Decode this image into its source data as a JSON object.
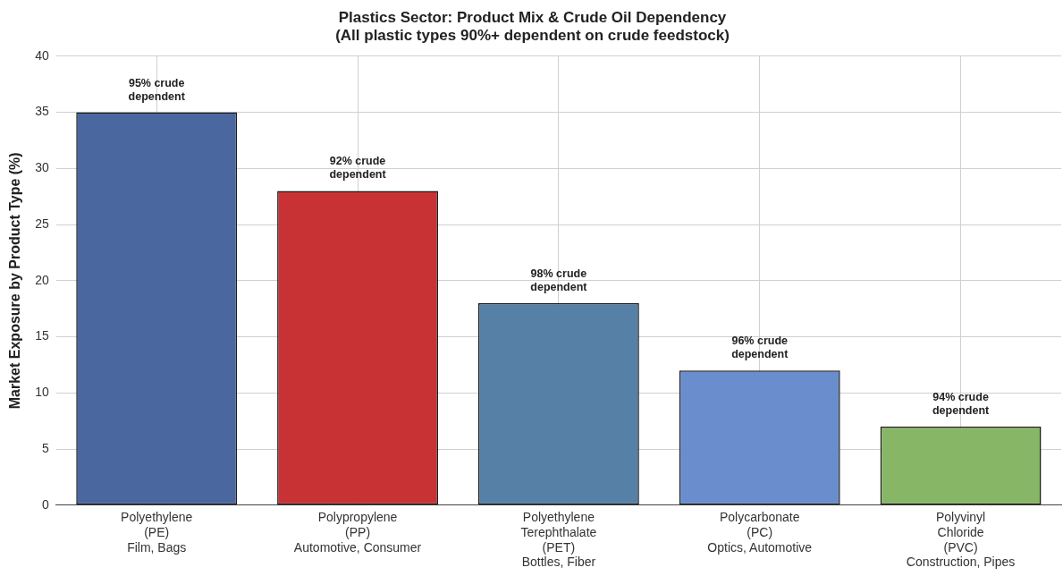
{
  "chart_data": {
    "type": "bar",
    "title": "Plastics Sector: Product Mix & Crude Oil Dependency",
    "subtitle": "(All plastic types 90%+ dependent on crude feedstock)",
    "ylabel": "Market Exposure by Product Type (%)",
    "categories": [
      "Polyethylene\n(PE)\nFilm, Bags",
      "Polypropylene\n(PP)\nAutomotive, Consumer",
      "Polyethylene\nTerephthalate\n(PET)\nBottles, Fiber",
      "Polycarbonate\n(PC)\nOptics, Automotive",
      "Polyvinyl\nChloride\n(PVC)\nConstruction, Pipes"
    ],
    "values": [
      35,
      28,
      18,
      12,
      7
    ],
    "colors": [
      "#4a67a0",
      "#c93234",
      "#5680a6",
      "#6a8dcd",
      "#87b766"
    ],
    "ylim": [
      0,
      40
    ],
    "yticks": [
      0,
      5,
      10,
      15,
      20,
      25,
      30,
      35,
      40
    ],
    "grid": true,
    "legend": false,
    "annotations": [
      {
        "text": "95% crude\ndependent",
        "x": "Polyethylene\n(PE)\nFilm, Bags",
        "y": 35
      },
      {
        "text": "92% crude\ndependent",
        "x": "Polypropylene\n(PP)\nAutomotive, Consumer",
        "y": 28
      },
      {
        "text": "98% crude\ndependent",
        "x": "Polyethylene\nTerephthalate\n(PET)\nBottles, Fiber",
        "y": 18
      },
      {
        "text": "96% crude\ndependent",
        "x": "Polycarbonate\n(PC)\nOptics, Automotive",
        "y": 12
      },
      {
        "text": "94% crude\ndependent",
        "x": "Polyvinyl\nChloride\n(PVC)\nConstruction, Pipes",
        "y": 7
      }
    ]
  }
}
